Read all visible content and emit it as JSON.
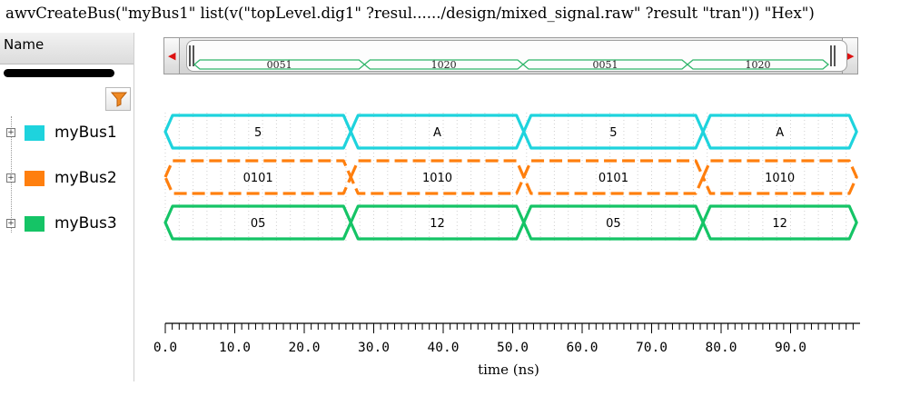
{
  "command_line": "awvCreateBus(\"myBus1\" list(v(\"topLevel.dig1\" ?resul....../design/mixed_signal.raw\" ?result \"tran\")) \"Hex\")",
  "name_panel": {
    "header": "Name",
    "filter_icon": "funnel-icon",
    "signals": [
      {
        "label": "myBus1",
        "color": "#1ed3dd"
      },
      {
        "label": "myBus2",
        "color": "#ff7f0e"
      },
      {
        "label": "myBus3",
        "color": "#15c466"
      }
    ]
  },
  "overview": {
    "left_arrow_icon": "arrow-left-icon",
    "right_arrow_icon": "arrow-right-icon",
    "segment_values": [
      "0051",
      "1020",
      "0051",
      "1020"
    ]
  },
  "waveforms": [
    {
      "name": "myBus1",
      "color": "#1ed3dd",
      "style": "solid",
      "values": [
        "5",
        "A",
        "5",
        "A"
      ]
    },
    {
      "name": "myBus2",
      "color": "#ff7f0e",
      "style": "dashed",
      "values": [
        "0101",
        "1010",
        "0101",
        "1010"
      ]
    },
    {
      "name": "myBus3",
      "color": "#15c466",
      "style": "solid",
      "values": [
        "05",
        "12",
        "05",
        "12"
      ]
    }
  ],
  "transitions_ns": [
    0,
    26.7,
    51.6,
    77.4,
    99.5
  ],
  "axis": {
    "title": "time (ns)",
    "range_ns": [
      0,
      100
    ],
    "major_tick_labels": [
      "0.0",
      "10.0",
      "20.0",
      "30.0",
      "40.0",
      "50.0",
      "60.0",
      "70.0",
      "80.0",
      "90.0"
    ],
    "major_tick_values": [
      0,
      10,
      20,
      30,
      40,
      50,
      60,
      70,
      80,
      90
    ]
  }
}
